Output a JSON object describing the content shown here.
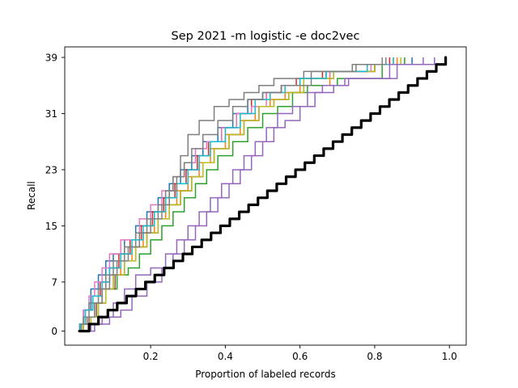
{
  "chart_data": {
    "type": "line",
    "title": "Sep 2021 -m logistic -e doc2vec",
    "xlabel": "Proportion of labeled records",
    "ylabel": "Recall",
    "xlim": [
      -0.03,
      1.045
    ],
    "ylim": [
      -2,
      40.5
    ],
    "x_ticks": [
      {
        "value": 0.2,
        "label": "0.2"
      },
      {
        "value": 0.4,
        "label": "0.4"
      },
      {
        "value": 0.6,
        "label": "0.6"
      },
      {
        "value": 0.8,
        "label": "0.8"
      },
      {
        "value": 1.0,
        "label": "1.0"
      }
    ],
    "y_ticks": [
      {
        "value": 0,
        "label": "0"
      },
      {
        "value": 7,
        "label": "7"
      },
      {
        "value": 15,
        "label": "15"
      },
      {
        "value": 23,
        "label": "23"
      },
      {
        "value": 31,
        "label": "31"
      },
      {
        "value": 39,
        "label": "39"
      }
    ],
    "grid": false,
    "legend": "none",
    "total_relevant": 39,
    "step_type": "post",
    "colors": {
      "random_baseline": "#000000",
      "palette": [
        "#1f77b4",
        "#ff7f0e",
        "#2ca02c",
        "#d62728",
        "#9467bd",
        "#8c564b",
        "#e377c2",
        "#7f7f7f",
        "#bcbd22",
        "#17becf"
      ]
    },
    "series": [
      {
        "color": "#1f77b4",
        "x": [
          0.005,
          0.01,
          0.02,
          0.04,
          0.06,
          0.08,
          0.1,
          0.13,
          0.16,
          0.19,
          0.22,
          0.25,
          0.28,
          0.31,
          0.34,
          0.38,
          0.42,
          0.46,
          0.5,
          0.55,
          0.6,
          0.67,
          0.8,
          0.9
        ],
        "y": [
          0,
          1,
          3,
          6,
          8,
          10,
          11,
          13,
          15,
          17,
          19,
          21,
          23,
          25,
          27,
          29,
          31,
          33,
          34,
          35,
          36,
          37,
          38,
          39
        ]
      },
      {
        "color": "#ff7f0e",
        "x": [
          0.005,
          0.015,
          0.03,
          0.05,
          0.07,
          0.1,
          0.12,
          0.15,
          0.18,
          0.21,
          0.24,
          0.27,
          0.3,
          0.33,
          0.36,
          0.4,
          0.44,
          0.48,
          0.52,
          0.56,
          0.6,
          0.68,
          0.8,
          0.86
        ],
        "y": [
          0,
          1,
          2,
          4,
          6,
          8,
          10,
          12,
          14,
          16,
          18,
          20,
          22,
          24,
          26,
          28,
          30,
          32,
          33,
          34,
          35,
          37,
          38,
          39
        ]
      },
      {
        "color": "#2ca02c",
        "x": [
          0.01,
          0.02,
          0.04,
          0.06,
          0.08,
          0.11,
          0.14,
          0.17,
          0.2,
          0.23,
          0.26,
          0.29,
          0.32,
          0.35,
          0.38,
          0.42,
          0.46,
          0.5,
          0.54,
          0.58,
          0.62,
          0.7,
          0.82,
          0.88
        ],
        "y": [
          0,
          1,
          2,
          4,
          6,
          8,
          9,
          11,
          13,
          15,
          17,
          19,
          21,
          23,
          25,
          27,
          29,
          31,
          32,
          34,
          35,
          36,
          38,
          39
        ]
      },
      {
        "color": "#d62728",
        "x": [
          0.005,
          0.012,
          0.025,
          0.045,
          0.065,
          0.09,
          0.115,
          0.145,
          0.175,
          0.205,
          0.235,
          0.265,
          0.295,
          0.325,
          0.355,
          0.39,
          0.43,
          0.47,
          0.51,
          0.55,
          0.59,
          0.66,
          0.78,
          0.84
        ],
        "y": [
          0,
          1,
          3,
          5,
          7,
          9,
          11,
          13,
          15,
          17,
          19,
          21,
          23,
          25,
          27,
          29,
          31,
          33,
          34,
          35,
          36,
          37,
          38,
          39
        ]
      },
      {
        "color": "#9467bd",
        "x": [
          0.02,
          0.05,
          0.09,
          0.12,
          0.15,
          0.19,
          0.23,
          0.26,
          0.29,
          0.32,
          0.35,
          0.38,
          0.41,
          0.44,
          0.47,
          0.5,
          0.53,
          0.56,
          0.6,
          0.64,
          0.69,
          0.73,
          0.86,
          0.96
        ],
        "y": [
          0,
          1,
          2,
          3,
          5,
          7,
          9,
          11,
          13,
          15,
          17,
          19,
          21,
          23,
          25,
          27,
          29,
          30,
          32,
          34,
          35,
          36,
          38,
          39
        ]
      },
      {
        "color": "#8c564b",
        "x": [
          0.01,
          0.02,
          0.035,
          0.055,
          0.08,
          0.105,
          0.13,
          0.16,
          0.19,
          0.22,
          0.25,
          0.28,
          0.31,
          0.34,
          0.37,
          0.41,
          0.45,
          0.49,
          0.53,
          0.57,
          0.61,
          0.69,
          0.8,
          0.87
        ],
        "y": [
          0,
          1,
          2,
          4,
          6,
          8,
          10,
          12,
          14,
          16,
          18,
          20,
          22,
          24,
          26,
          28,
          30,
          32,
          33,
          34,
          36,
          37,
          38,
          39
        ]
      },
      {
        "color": "#e377c2",
        "x": [
          0.005,
          0.01,
          0.02,
          0.035,
          0.05,
          0.07,
          0.09,
          0.12,
          0.17,
          0.2,
          0.23,
          0.26,
          0.29,
          0.32,
          0.35,
          0.39,
          0.43,
          0.47,
          0.51,
          0.55,
          0.6,
          0.68,
          0.79,
          0.85
        ],
        "y": [
          0,
          1,
          3,
          5,
          7,
          9,
          11,
          13,
          16,
          18,
          20,
          22,
          24,
          26,
          27,
          29,
          31,
          32,
          34,
          35,
          36,
          37,
          38,
          39
        ]
      },
      {
        "color": "#7f7f7f",
        "x": [
          0.005,
          0.01,
          0.02,
          0.035,
          0.06,
          0.08,
          0.1,
          0.13,
          0.16,
          0.19,
          0.22,
          0.24,
          0.26,
          0.28,
          0.3,
          0.33,
          0.37,
          0.41,
          0.45,
          0.49,
          0.53,
          0.61,
          0.74,
          0.82
        ],
        "y": [
          0,
          1,
          2,
          4,
          6,
          8,
          10,
          12,
          14,
          16,
          18,
          20,
          22,
          25,
          28,
          30,
          32,
          33,
          34,
          35,
          36,
          37,
          38,
          39
        ]
      },
      {
        "color": "#bcbd22",
        "x": [
          0.01,
          0.02,
          0.04,
          0.06,
          0.08,
          0.1,
          0.13,
          0.16,
          0.19,
          0.22,
          0.25,
          0.28,
          0.31,
          0.34,
          0.37,
          0.41,
          0.45,
          0.49,
          0.53,
          0.57,
          0.61,
          0.69,
          0.8,
          0.87
        ],
        "y": [
          0,
          1,
          2,
          4,
          6,
          8,
          10,
          12,
          14,
          16,
          18,
          20,
          22,
          24,
          26,
          28,
          30,
          32,
          33,
          34,
          36,
          37,
          38,
          39
        ]
      },
      {
        "color": "#17becf",
        "x": [
          0.005,
          0.012,
          0.025,
          0.045,
          0.07,
          0.09,
          0.12,
          0.15,
          0.18,
          0.21,
          0.24,
          0.27,
          0.3,
          0.33,
          0.36,
          0.4,
          0.44,
          0.48,
          0.52,
          0.56,
          0.6,
          0.67,
          0.78,
          0.85
        ],
        "y": [
          0,
          1,
          3,
          5,
          7,
          9,
          11,
          13,
          15,
          17,
          19,
          21,
          23,
          25,
          27,
          29,
          31,
          33,
          34,
          35,
          36,
          37,
          38,
          39
        ]
      },
      {
        "color": "#9467bd",
        "x": [
          0.015,
          0.04,
          0.07,
          0.1,
          0.13,
          0.16,
          0.2,
          0.24,
          0.27,
          0.3,
          0.33,
          0.36,
          0.39,
          0.42,
          0.45,
          0.48,
          0.51,
          0.54,
          0.58,
          0.62,
          0.66,
          0.72,
          0.84,
          0.93
        ],
        "y": [
          0,
          1,
          2,
          4,
          6,
          8,
          9,
          11,
          13,
          15,
          17,
          19,
          21,
          23,
          25,
          27,
          29,
          31,
          32,
          34,
          35,
          36,
          38,
          39
        ]
      },
      {
        "color": "#7f7f7f",
        "x": [
          0.005,
          0.015,
          0.03,
          0.05,
          0.07,
          0.09,
          0.11,
          0.14,
          0.17,
          0.2,
          0.23,
          0.25,
          0.27,
          0.29,
          0.31,
          0.34,
          0.38,
          0.42,
          0.46,
          0.5,
          0.55,
          0.63,
          0.75,
          0.83
        ],
        "y": [
          0,
          1,
          2,
          4,
          6,
          8,
          10,
          12,
          14,
          16,
          18,
          20,
          22,
          24,
          26,
          28,
          30,
          32,
          33,
          34,
          35,
          37,
          38,
          39
        ]
      }
    ],
    "random_baseline": {
      "x_start": 0.01,
      "x_end": 0.99,
      "y_start": 0,
      "y_end": 39,
      "linewidth": "thick"
    }
  }
}
